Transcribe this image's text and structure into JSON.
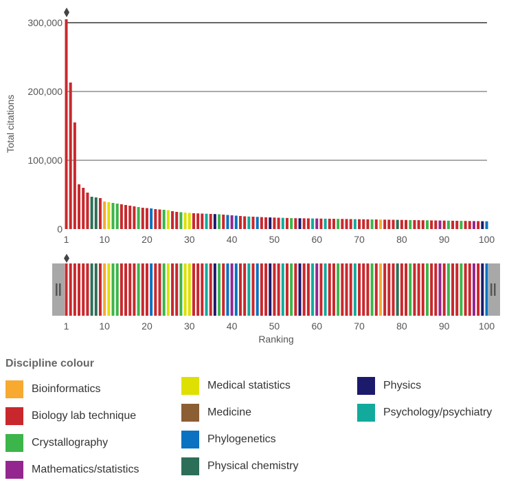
{
  "colors": {
    "Bioinformatics": "#f7a930",
    "Biology lab technique": "#c8282d",
    "Crystallography": "#3cb54a",
    "Mathematics/statistics": "#93278f",
    "Medical statistics": "#dde000",
    "Medicine": "#8b5e34",
    "Phylogenetics": "#0a72c0",
    "Physical chemistry": "#2c6e58",
    "Physics": "#1c1a6b",
    "Psychology/psychiatry": "#12aa9c"
  },
  "legend": {
    "title": "Discipline colour",
    "items": [
      {
        "label": "Bioinformatics",
        "color": "#f7a930"
      },
      {
        "label": "Biology lab technique",
        "color": "#c8282d"
      },
      {
        "label": "Crystallography",
        "color": "#3cb54a"
      },
      {
        "label": "Mathematics/statistics",
        "color": "#93278f"
      },
      {
        "label": "Medical statistics",
        "color": "#dde000"
      },
      {
        "label": "Medicine",
        "color": "#8b5e34"
      },
      {
        "label": "Phylogenetics",
        "color": "#0a72c0"
      },
      {
        "label": "Physical chemistry",
        "color": "#2c6e58"
      },
      {
        "label": "Physics",
        "color": "#1c1a6b"
      },
      {
        "label": "Psychology/psychiatry",
        "color": "#12aa9c"
      }
    ]
  },
  "chart_data": {
    "type": "bar",
    "title": "",
    "xlabel": "Ranking",
    "ylabel": "Total citations",
    "ylim": [
      0,
      300000
    ],
    "yticks": [
      0,
      100000,
      200000,
      300000
    ],
    "ytick_labels": [
      "0",
      "100,000",
      "200,000",
      "300,000"
    ],
    "xticks": [
      1,
      10,
      20,
      30,
      40,
      50,
      60,
      70,
      80,
      90,
      100
    ],
    "xtick_labels": [
      "1",
      "10",
      "20",
      "30",
      "40",
      "50",
      "60",
      "70",
      "80",
      "90",
      "100"
    ],
    "grid": true,
    "navigator": true,
    "ranks": [
      1,
      2,
      3,
      4,
      5,
      6,
      7,
      8,
      9,
      10,
      11,
      12,
      13,
      14,
      15,
      16,
      17,
      18,
      19,
      20,
      21,
      22,
      23,
      24,
      25,
      26,
      27,
      28,
      29,
      30,
      31,
      32,
      33,
      34,
      35,
      36,
      37,
      38,
      39,
      40,
      41,
      42,
      43,
      44,
      45,
      46,
      47,
      48,
      49,
      50,
      51,
      52,
      53,
      54,
      55,
      56,
      57,
      58,
      59,
      60,
      61,
      62,
      63,
      64,
      65,
      66,
      67,
      68,
      69,
      70,
      71,
      72,
      73,
      74,
      75,
      76,
      77,
      78,
      79,
      80,
      81,
      82,
      83,
      84,
      85,
      86,
      87,
      88,
      89,
      90,
      91,
      92,
      93,
      94,
      95,
      96,
      97,
      98,
      99,
      100
    ],
    "values": [
      305000,
      213000,
      155000,
      65000,
      60000,
      53000,
      47000,
      46000,
      45000,
      40000,
      39000,
      38000,
      37000,
      36000,
      35000,
      34000,
      33000,
      32000,
      31000,
      30500,
      30000,
      29000,
      28500,
      28000,
      27500,
      26000,
      25000,
      24500,
      24000,
      23500,
      23000,
      22800,
      22500,
      22300,
      22000,
      21800,
      21500,
      21000,
      20500,
      20000,
      19500,
      19000,
      18500,
      18200,
      18000,
      17700,
      17400,
      17100,
      16900,
      16700,
      16500,
      16300,
      16100,
      15900,
      15800,
      15700,
      15600,
      15500,
      15400,
      15300,
      15200,
      15100,
      15000,
      14900,
      14800,
      14700,
      14600,
      14500,
      14400,
      14300,
      14200,
      14100,
      14000,
      13900,
      13800,
      13700,
      13600,
      13500,
      13400,
      13300,
      13200,
      13100,
      13000,
      12900,
      12800,
      12700,
      12600,
      12500,
      12400,
      12300,
      12200,
      12100,
      12000,
      11900,
      11800,
      11700,
      11600,
      11500,
      11400,
      11300
    ],
    "categories": [
      "Biology lab technique",
      "Biology lab technique",
      "Biology lab technique",
      "Biology lab technique",
      "Biology lab technique",
      "Biology lab technique",
      "Physical chemistry",
      "Physical chemistry",
      "Biology lab technique",
      "Bioinformatics",
      "Medical statistics",
      "Crystallography",
      "Crystallography",
      "Biology lab technique",
      "Biology lab technique",
      "Biology lab technique",
      "Biology lab technique",
      "Crystallography",
      "Biology lab technique",
      "Biology lab technique",
      "Phylogenetics",
      "Biology lab technique",
      "Biology lab technique",
      "Crystallography",
      "Medical statistics",
      "Biology lab technique",
      "Biology lab technique",
      "Crystallography",
      "Medical statistics",
      "Medical statistics",
      "Biology lab technique",
      "Biology lab technique",
      "Biology lab technique",
      "Psychology/psychiatry",
      "Biology lab technique",
      "Physics",
      "Crystallography",
      "Biology lab technique",
      "Phylogenetics",
      "Mathematics/statistics",
      "Phylogenetics",
      "Biology lab technique",
      "Biology lab technique",
      "Psychology/psychiatry",
      "Biology lab technique",
      "Phylogenetics",
      "Biology lab technique",
      "Biology lab technique",
      "Physics",
      "Biology lab technique",
      "Biology lab technique",
      "Psychology/psychiatry",
      "Biology lab technique",
      "Crystallography",
      "Biology lab technique",
      "Physics",
      "Biology lab technique",
      "Biology lab technique",
      "Psychology/psychiatry",
      "Mathematics/statistics",
      "Biology lab technique",
      "Psychology/psychiatry",
      "Biology lab technique",
      "Biology lab technique",
      "Crystallography",
      "Biology lab technique",
      "Biology lab technique",
      "Biology lab technique",
      "Psychology/psychiatry",
      "Biology lab technique",
      "Biology lab technique",
      "Biology lab technique",
      "Crystallography",
      "Biology lab technique",
      "Bioinformatics",
      "Biology lab technique",
      "Biology lab technique",
      "Biology lab technique",
      "Physical chemistry",
      "Biology lab technique",
      "Biology lab technique",
      "Crystallography",
      "Biology lab technique",
      "Biology lab technique",
      "Biology lab technique",
      "Crystallography",
      "Biology lab technique",
      "Biology lab technique",
      "Mathematics/statistics",
      "Biology lab technique",
      "Crystallography",
      "Biology lab technique",
      "Biology lab technique",
      "Crystallography",
      "Biology lab technique",
      "Biology lab technique",
      "Mathematics/statistics",
      "Biology lab technique",
      "Physics",
      "Phylogenetics"
    ]
  }
}
